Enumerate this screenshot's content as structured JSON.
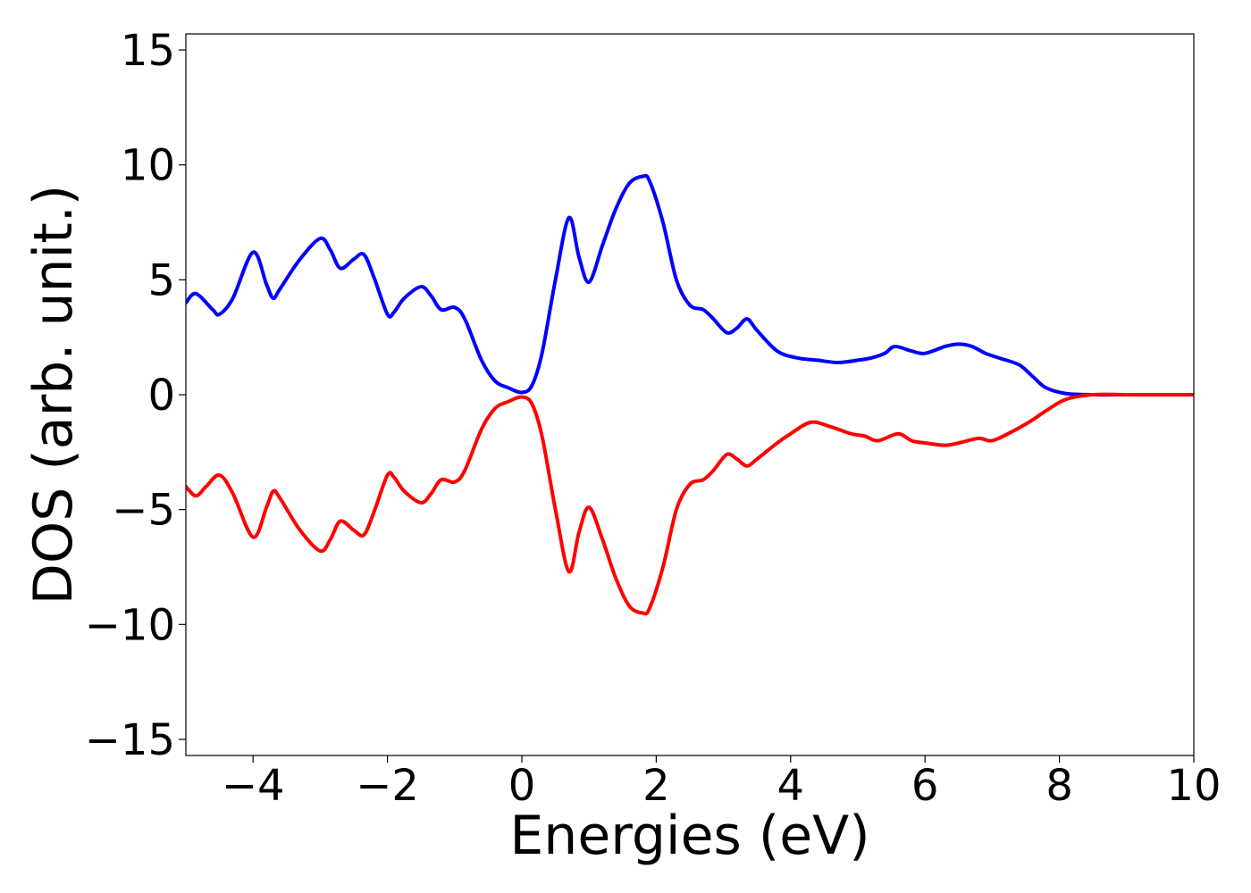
{
  "chart_data": {
    "type": "line",
    "title": "",
    "xlabel": "Energies (eV)",
    "ylabel": "DOS (arb. unit.)",
    "xlim": [
      -5,
      10
    ],
    "ylim": [
      -15.7,
      15.7
    ],
    "xticks": [
      -4,
      -2,
      0,
      2,
      4,
      6,
      8,
      10
    ],
    "xtick_labels": [
      "−4",
      "−2",
      "0",
      "2",
      "4",
      "6",
      "8",
      "10"
    ],
    "yticks": [
      15,
      10,
      5,
      0,
      -5,
      -10,
      -15
    ],
    "ytick_labels": [
      "15",
      "10",
      "5",
      "0",
      "−5",
      "−10",
      "−15"
    ],
    "grid": false,
    "legend": "none",
    "series": [
      {
        "color": "#0000ff",
        "x": [
          -5.0,
          -4.85,
          -4.6,
          -4.5,
          -4.3,
          -4.0,
          -3.8,
          -3.7,
          -3.6,
          -3.3,
          -3.0,
          -2.85,
          -2.7,
          -2.5,
          -2.35,
          -2.2,
          -2.0,
          -1.9,
          -1.75,
          -1.5,
          -1.35,
          -1.2,
          -1.0,
          -0.85,
          -0.6,
          -0.4,
          -0.2,
          0.0,
          0.15,
          0.3,
          0.5,
          0.7,
          0.85,
          1.0,
          1.2,
          1.4,
          1.6,
          1.8,
          1.9,
          2.1,
          2.3,
          2.5,
          2.7,
          2.85,
          3.05,
          3.2,
          3.35,
          3.5,
          3.8,
          4.1,
          4.4,
          4.7,
          5.0,
          5.2,
          5.4,
          5.55,
          5.8,
          6.0,
          6.3,
          6.5,
          6.7,
          6.9,
          7.1,
          7.4,
          7.6,
          7.8,
          8.1,
          8.5,
          9.0,
          9.5,
          10.0
        ],
        "y": [
          4.0,
          4.4,
          3.7,
          3.5,
          4.2,
          6.2,
          4.8,
          4.2,
          4.6,
          5.9,
          6.8,
          6.3,
          5.5,
          5.9,
          6.1,
          5.1,
          3.5,
          3.6,
          4.2,
          4.7,
          4.3,
          3.7,
          3.8,
          3.3,
          1.5,
          0.6,
          0.3,
          0.1,
          0.4,
          1.8,
          5.0,
          7.7,
          6.0,
          4.9,
          6.5,
          8.1,
          9.2,
          9.5,
          9.3,
          7.5,
          5.0,
          3.9,
          3.7,
          3.3,
          2.7,
          2.9,
          3.3,
          2.8,
          1.9,
          1.6,
          1.5,
          1.4,
          1.5,
          1.6,
          1.8,
          2.1,
          1.9,
          1.8,
          2.1,
          2.2,
          2.1,
          1.8,
          1.6,
          1.3,
          0.8,
          0.3,
          0.05,
          0.0,
          0.0,
          0.0,
          0.0
        ]
      },
      {
        "color": "#ff0000",
        "x": [
          -5.0,
          -4.85,
          -4.7,
          -4.5,
          -4.3,
          -4.0,
          -3.8,
          -3.7,
          -3.6,
          -3.3,
          -3.0,
          -2.85,
          -2.7,
          -2.5,
          -2.35,
          -2.2,
          -2.0,
          -1.9,
          -1.75,
          -1.5,
          -1.35,
          -1.2,
          -1.0,
          -0.85,
          -0.6,
          -0.4,
          -0.2,
          0.0,
          0.15,
          0.3,
          0.5,
          0.7,
          0.85,
          1.0,
          1.2,
          1.4,
          1.6,
          1.8,
          1.9,
          2.1,
          2.3,
          2.5,
          2.7,
          2.85,
          3.05,
          3.2,
          3.35,
          3.5,
          3.8,
          4.0,
          4.3,
          4.6,
          4.9,
          5.1,
          5.3,
          5.6,
          5.8,
          6.0,
          6.3,
          6.5,
          6.8,
          7.0,
          7.3,
          7.6,
          7.8,
          8.1,
          8.5,
          9.0,
          9.5,
          10.0
        ],
        "y": [
          -4.0,
          -4.4,
          -4.0,
          -3.5,
          -4.3,
          -6.2,
          -4.9,
          -4.2,
          -4.5,
          -5.9,
          -6.8,
          -6.3,
          -5.5,
          -5.9,
          -6.1,
          -5.1,
          -3.5,
          -3.6,
          -4.2,
          -4.7,
          -4.3,
          -3.7,
          -3.8,
          -3.3,
          -1.5,
          -0.6,
          -0.3,
          -0.1,
          -0.4,
          -1.8,
          -5.0,
          -7.7,
          -6.0,
          -4.9,
          -6.3,
          -8.0,
          -9.2,
          -9.5,
          -9.3,
          -7.5,
          -5.0,
          -3.9,
          -3.7,
          -3.3,
          -2.6,
          -2.8,
          -3.1,
          -2.8,
          -2.1,
          -1.7,
          -1.2,
          -1.4,
          -1.7,
          -1.8,
          -2.0,
          -1.7,
          -2.0,
          -2.1,
          -2.2,
          -2.1,
          -1.9,
          -2.0,
          -1.6,
          -1.1,
          -0.7,
          -0.2,
          0.0,
          0.0,
          0.0,
          0.0
        ]
      }
    ]
  }
}
